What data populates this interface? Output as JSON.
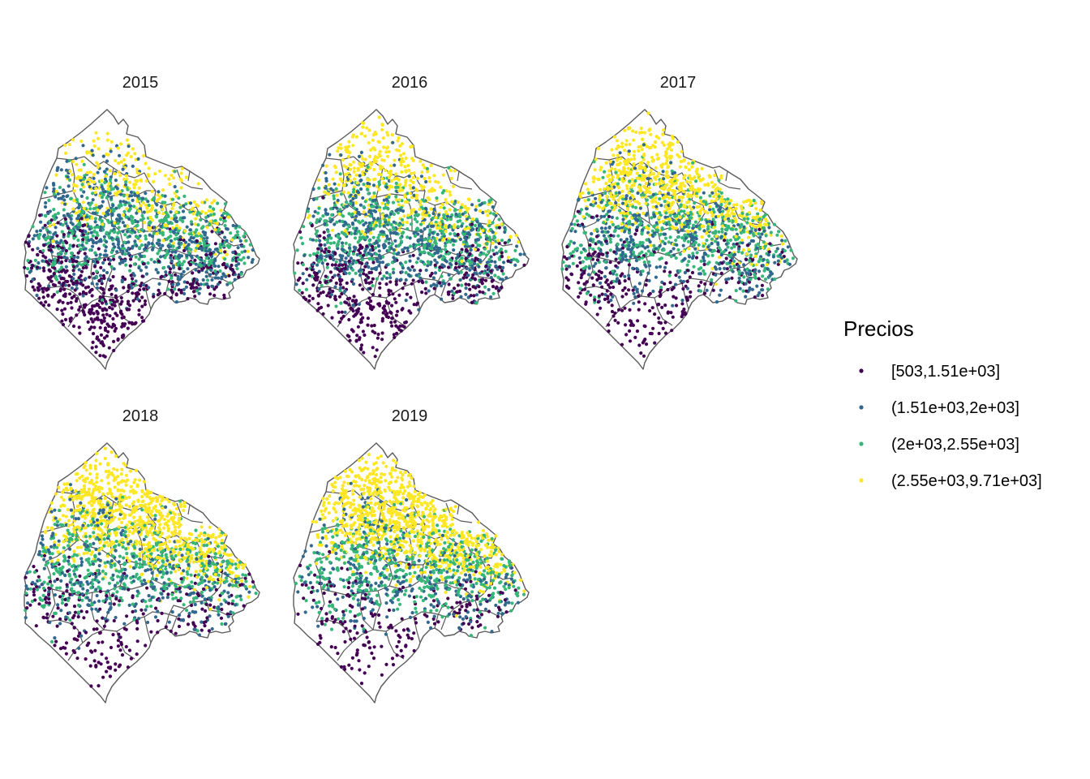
{
  "chart_data": {
    "type": "scatter",
    "map": "point map (faceted by year)",
    "legend": {
      "title": "Precios",
      "position": "right",
      "items": [
        {
          "label": "[503,1.51e+03]",
          "color": "#440154"
        },
        {
          "label": "(1.51e+03,2e+03]",
          "color": "#31688e"
        },
        {
          "label": "(2e+03,2.55e+03]",
          "color": "#35b779"
        },
        {
          "label": "(2.55e+03,9.71e+03]",
          "color": "#fde725"
        }
      ]
    },
    "panels": [
      {
        "title": "2015",
        "share": [
          0.3,
          0.31,
          0.24,
          0.15
        ]
      },
      {
        "title": "2016",
        "share": [
          0.25,
          0.28,
          0.24,
          0.23
        ]
      },
      {
        "title": "2017",
        "share": [
          0.16,
          0.22,
          0.26,
          0.36
        ]
      },
      {
        "title": "2018",
        "share": [
          0.13,
          0.17,
          0.24,
          0.46
        ]
      },
      {
        "title": "2019",
        "share": [
          0.13,
          0.15,
          0.24,
          0.48
        ]
      }
    ]
  }
}
